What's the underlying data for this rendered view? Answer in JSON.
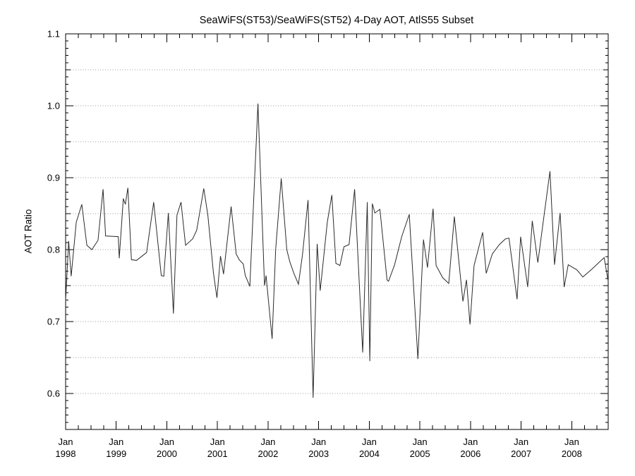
{
  "page": {
    "background": "#ffffff"
  },
  "chart_data": {
    "type": "line",
    "title": "SeaWiFS(ST53)/SeaWiFS(ST52) 4-Day AOT, AtlS55 Subset",
    "ylabel": "AOT Ratio",
    "xlabel": "",
    "x_unit": "decimal_year",
    "xlim": [
      1998.0,
      2008.72
    ],
    "ylim": [
      0.55,
      1.1
    ],
    "y_major_ticks": [
      0.6,
      0.7,
      0.8,
      0.9,
      1.0,
      1.1
    ],
    "y_mid_tick_step": 0.05,
    "y_minor_tick_step": 0.01,
    "y_gridline_step": 0.05,
    "x_major_ticks": [
      1998,
      1999,
      2000,
      2001,
      2002,
      2003,
      2004,
      2005,
      2006,
      2007,
      2008
    ],
    "x_major_tick_labels": [
      [
        "Jan",
        "1998"
      ],
      [
        "Jan",
        "1999"
      ],
      [
        "Jan",
        "2000"
      ],
      [
        "Jan",
        "2001"
      ],
      [
        "Jan",
        "2002"
      ],
      [
        "Jan",
        "2003"
      ],
      [
        "Jan",
        "2004"
      ],
      [
        "Jan",
        "2005"
      ],
      [
        "Jan",
        "2006"
      ],
      [
        "Jan",
        "2007"
      ],
      [
        "Jan",
        "2008"
      ]
    ],
    "x_minor_tick_step": 0.25,
    "grid_style": "dotted",
    "legend": "none",
    "colors": {
      "line": "#2b2b2b",
      "axis": "#000000",
      "grid": "#999999",
      "background": "#ffffff"
    },
    "series": [
      {
        "name": "SeaWiFS(ST53)/SeaWiFS(ST52) AOT ratio",
        "points": [
          [
            1998.0,
            0.729
          ],
          [
            1998.06,
            0.812
          ],
          [
            1998.11,
            0.763
          ],
          [
            1998.21,
            0.838
          ],
          [
            1998.32,
            0.863
          ],
          [
            1998.42,
            0.806
          ],
          [
            1998.52,
            0.8
          ],
          [
            1998.64,
            0.813
          ],
          [
            1998.74,
            0.884
          ],
          [
            1998.79,
            0.819
          ],
          [
            1999.04,
            0.818
          ],
          [
            1999.06,
            0.788
          ],
          [
            1999.14,
            0.871
          ],
          [
            1999.18,
            0.863
          ],
          [
            1999.23,
            0.886
          ],
          [
            1999.3,
            0.786
          ],
          [
            1999.4,
            0.785
          ],
          [
            1999.6,
            0.796
          ],
          [
            1999.74,
            0.866
          ],
          [
            1999.89,
            0.764
          ],
          [
            1999.94,
            0.763
          ],
          [
            2000.03,
            0.851
          ],
          [
            2000.13,
            0.711
          ],
          [
            2000.2,
            0.848
          ],
          [
            2000.28,
            0.866
          ],
          [
            2000.37,
            0.806
          ],
          [
            2000.51,
            0.815
          ],
          [
            2000.59,
            0.827
          ],
          [
            2000.73,
            0.885
          ],
          [
            2000.81,
            0.848
          ],
          [
            2000.92,
            0.768
          ],
          [
            2000.99,
            0.733
          ],
          [
            2001.06,
            0.791
          ],
          [
            2001.12,
            0.766
          ],
          [
            2001.27,
            0.86
          ],
          [
            2001.37,
            0.794
          ],
          [
            2001.43,
            0.786
          ],
          [
            2001.51,
            0.78
          ],
          [
            2001.55,
            0.764
          ],
          [
            2001.64,
            0.749
          ],
          [
            2001.8,
            1.003
          ],
          [
            2001.93,
            0.75
          ],
          [
            2001.96,
            0.764
          ],
          [
            2002.08,
            0.676
          ],
          [
            2002.15,
            0.8
          ],
          [
            2002.26,
            0.899
          ],
          [
            2002.37,
            0.8
          ],
          [
            2002.43,
            0.783
          ],
          [
            2002.51,
            0.767
          ],
          [
            2002.6,
            0.752
          ],
          [
            2002.68,
            0.793
          ],
          [
            2002.79,
            0.869
          ],
          [
            2002.89,
            0.594
          ],
          [
            2002.97,
            0.808
          ],
          [
            2003.03,
            0.743
          ],
          [
            2003.17,
            0.838
          ],
          [
            2003.26,
            0.876
          ],
          [
            2003.34,
            0.781
          ],
          [
            2003.42,
            0.778
          ],
          [
            2003.5,
            0.804
          ],
          [
            2003.6,
            0.807
          ],
          [
            2003.71,
            0.884
          ],
          [
            2003.87,
            0.657
          ],
          [
            2003.96,
            0.866
          ],
          [
            2004.01,
            0.645
          ],
          [
            2004.06,
            0.864
          ],
          [
            2004.11,
            0.851
          ],
          [
            2004.21,
            0.856
          ],
          [
            2004.35,
            0.758
          ],
          [
            2004.38,
            0.756
          ],
          [
            2004.5,
            0.779
          ],
          [
            2004.64,
            0.818
          ],
          [
            2004.79,
            0.849
          ],
          [
            2004.96,
            0.648
          ],
          [
            2005.07,
            0.814
          ],
          [
            2005.15,
            0.775
          ],
          [
            2005.26,
            0.857
          ],
          [
            2005.32,
            0.778
          ],
          [
            2005.45,
            0.761
          ],
          [
            2005.57,
            0.753
          ],
          [
            2005.68,
            0.846
          ],
          [
            2005.85,
            0.728
          ],
          [
            2005.92,
            0.758
          ],
          [
            2005.99,
            0.696
          ],
          [
            2006.07,
            0.778
          ],
          [
            2006.24,
            0.824
          ],
          [
            2006.31,
            0.767
          ],
          [
            2006.43,
            0.794
          ],
          [
            2006.57,
            0.807
          ],
          [
            2006.69,
            0.815
          ],
          [
            2006.76,
            0.816
          ],
          [
            2006.92,
            0.731
          ],
          [
            2006.99,
            0.818
          ],
          [
            2007.13,
            0.748
          ],
          [
            2007.22,
            0.84
          ],
          [
            2007.33,
            0.782
          ],
          [
            2007.45,
            0.846
          ],
          [
            2007.57,
            0.909
          ],
          [
            2007.66,
            0.779
          ],
          [
            2007.77,
            0.851
          ],
          [
            2007.85,
            0.748
          ],
          [
            2007.93,
            0.779
          ],
          [
            2008.1,
            0.772
          ],
          [
            2008.22,
            0.762
          ],
          [
            2008.4,
            0.773
          ],
          [
            2008.55,
            0.783
          ],
          [
            2008.64,
            0.789
          ],
          [
            2008.72,
            0.756
          ]
        ]
      }
    ]
  }
}
